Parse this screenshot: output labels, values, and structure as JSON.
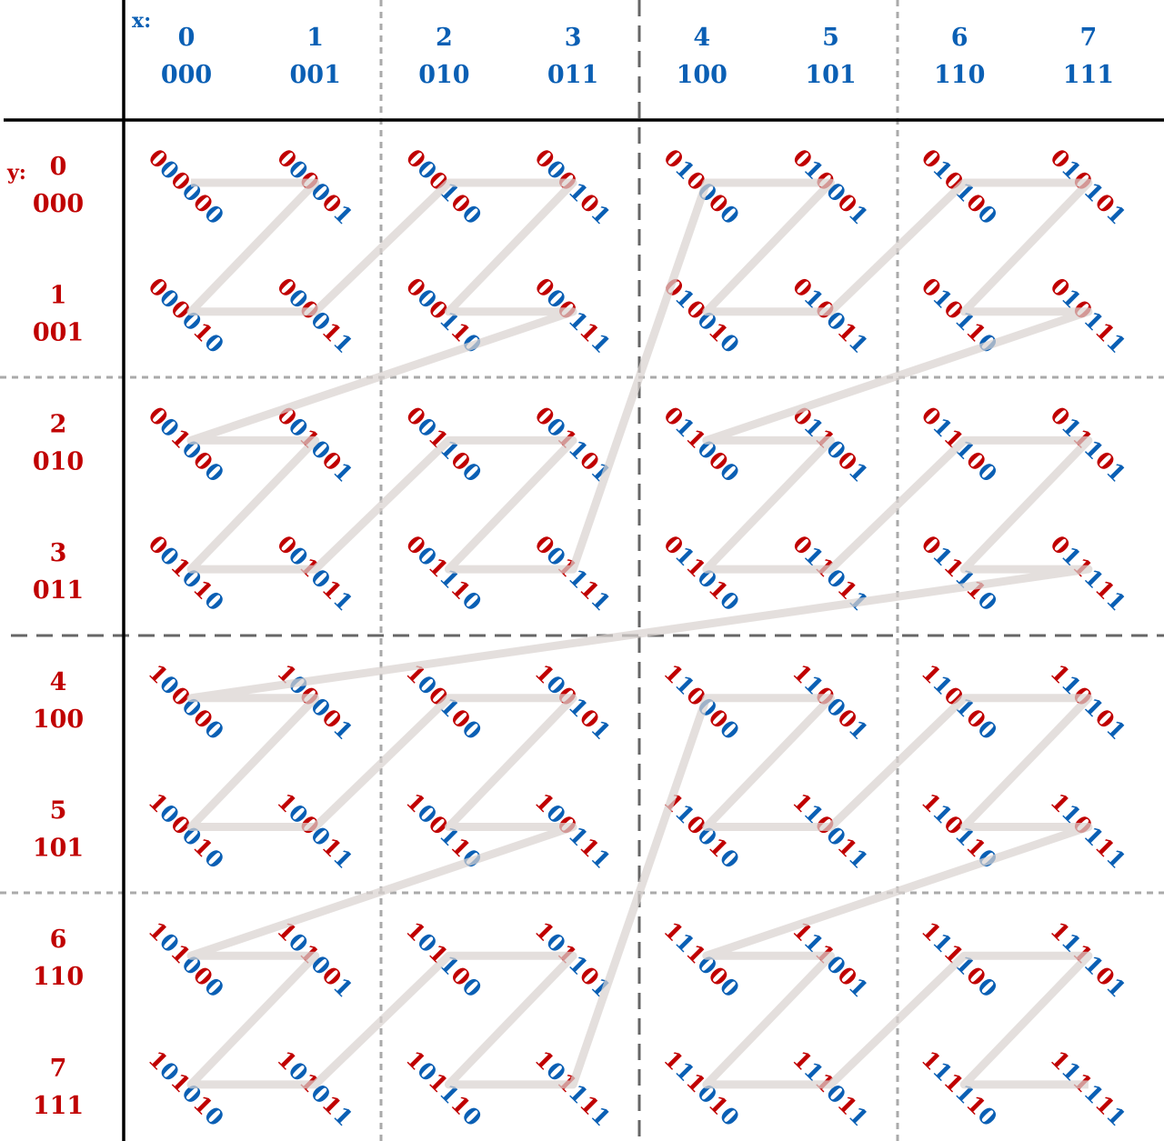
{
  "axes": {
    "x_label": "x:",
    "y_label": "y:",
    "x_values": [
      {
        "dec": "0",
        "bin": "000"
      },
      {
        "dec": "1",
        "bin": "001"
      },
      {
        "dec": "2",
        "bin": "010"
      },
      {
        "dec": "3",
        "bin": "011"
      },
      {
        "dec": "4",
        "bin": "100"
      },
      {
        "dec": "5",
        "bin": "101"
      },
      {
        "dec": "6",
        "bin": "110"
      },
      {
        "dec": "7",
        "bin": "111"
      }
    ],
    "y_values": [
      {
        "dec": "0",
        "bin": "000"
      },
      {
        "dec": "1",
        "bin": "001"
      },
      {
        "dec": "2",
        "bin": "010"
      },
      {
        "dec": "3",
        "bin": "011"
      },
      {
        "dec": "4",
        "bin": "100"
      },
      {
        "dec": "5",
        "bin": "101"
      },
      {
        "dec": "6",
        "bin": "110"
      },
      {
        "dec": "7",
        "bin": "111"
      }
    ]
  },
  "curve": {
    "type": "Z-order (Morton) curve",
    "bits_per_axis": 3,
    "interleave": "y2 x2 y1 x1 y0 x0"
  },
  "colors": {
    "x_bits": "#0a5fb4",
    "y_bits": "#c00000",
    "curve": "#d9d3d0",
    "grid_solid": "#000000",
    "grid_dashed": "#666666",
    "grid_dotted": "#aaaaaa"
  }
}
